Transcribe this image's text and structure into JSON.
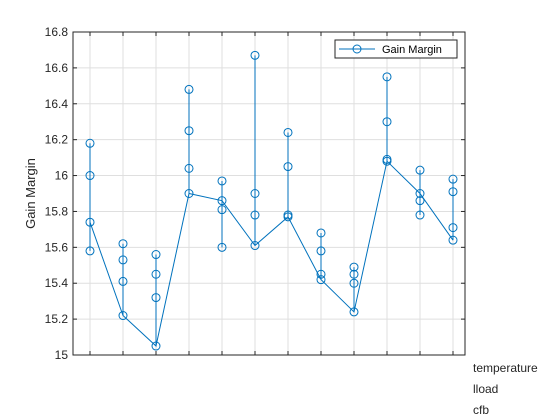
{
  "chart_data": {
    "type": "line",
    "ylabel": "Gain Margin",
    "ylim": [
      15,
      16.8
    ],
    "yticks": [
      15,
      15.2,
      15.4,
      15.6,
      15.8,
      16,
      16.2,
      16.4,
      16.6,
      16.8
    ],
    "ytick_labels": [
      "15",
      "15.2",
      "15.4",
      "15.6",
      "15.8",
      "16",
      "16.2",
      "16.4",
      "16.6",
      "16.8"
    ],
    "x_factor_labels": [
      "temperature",
      "lload",
      "cfb"
    ],
    "grid": true,
    "legend_position": "top-right",
    "series": [
      {
        "name": "Gain Margin",
        "color": "#0072BD",
        "groups": [
          {
            "points": [
              15.58,
              15.74,
              16.0,
              16.18
            ],
            "mean": 15.74
          },
          {
            "points": [
              15.22,
              15.41,
              15.53,
              15.62
            ],
            "mean": 15.22
          },
          {
            "points": [
              15.05,
              15.32,
              15.45,
              15.56
            ],
            "mean": 15.05
          },
          {
            "points": [
              15.9,
              16.04,
              16.25,
              16.48
            ],
            "mean": 15.9
          },
          {
            "points": [
              15.6,
              15.81,
              15.86,
              15.97
            ],
            "mean": 15.86
          },
          {
            "points": [
              15.61,
              15.78,
              15.9,
              16.67
            ],
            "mean": 15.61
          },
          {
            "points": [
              15.77,
              15.78,
              16.05,
              16.24
            ],
            "mean": 15.77
          },
          {
            "points": [
              15.42,
              15.45,
              15.58,
              15.68
            ],
            "mean": 15.42
          },
          {
            "points": [
              15.24,
              15.4,
              15.45,
              15.49
            ],
            "mean": 15.24
          },
          {
            "points": [
              16.08,
              16.09,
              16.3,
              16.55
            ],
            "mean": 16.08
          },
          {
            "points": [
              15.78,
              15.86,
              15.9,
              16.03
            ],
            "mean": 15.9
          },
          {
            "points": [
              15.64,
              15.71,
              15.91,
              15.98
            ],
            "mean": 15.64
          }
        ]
      }
    ]
  }
}
